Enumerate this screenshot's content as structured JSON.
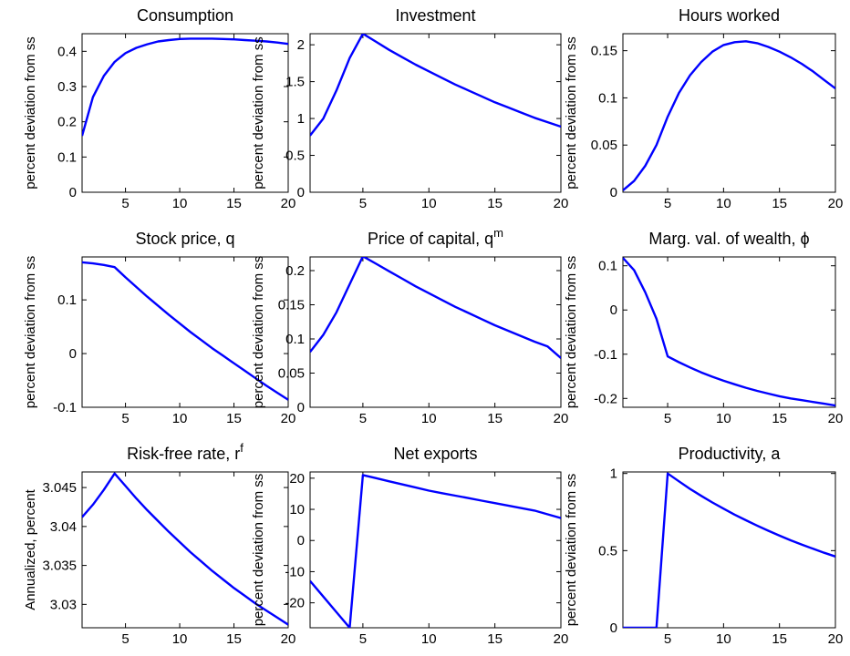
{
  "chart_data": [
    {
      "type": "line",
      "title": "Consumption",
      "ylabel": "percent deviation from ss",
      "xlim": [
        1,
        20
      ],
      "ylim": [
        0,
        0.45
      ],
      "xticks": [
        5,
        10,
        15,
        20
      ],
      "yticks": [
        0,
        0.1,
        0.2,
        0.3,
        0.4
      ],
      "grid": false,
      "series_color": "#0000ff",
      "x": [
        1,
        2,
        3,
        4,
        5,
        6,
        7,
        8,
        9,
        10,
        11,
        12,
        13,
        14,
        15,
        16,
        17,
        18,
        19,
        20
      ],
      "y": [
        0.16,
        0.27,
        0.33,
        0.37,
        0.395,
        0.41,
        0.42,
        0.428,
        0.432,
        0.435,
        0.436,
        0.436,
        0.436,
        0.435,
        0.434,
        0.432,
        0.43,
        0.428,
        0.425,
        0.421
      ]
    },
    {
      "type": "line",
      "title": "Investment",
      "ylabel": "percent deviation from ss",
      "xlim": [
        1,
        20
      ],
      "ylim": [
        0,
        2.15
      ],
      "xticks": [
        5,
        10,
        15,
        20
      ],
      "yticks": [
        0,
        0.5,
        1,
        1.5,
        2
      ],
      "grid": false,
      "series_color": "#0000ff",
      "x": [
        1,
        2,
        3,
        4,
        5,
        6,
        7,
        8,
        9,
        10,
        11,
        12,
        13,
        14,
        15,
        16,
        17,
        18,
        19,
        20
      ],
      "y": [
        0.77,
        1.0,
        1.38,
        1.82,
        2.15,
        2.04,
        1.93,
        1.83,
        1.73,
        1.64,
        1.55,
        1.46,
        1.38,
        1.3,
        1.22,
        1.15,
        1.08,
        1.01,
        0.95,
        0.89
      ]
    },
    {
      "type": "line",
      "title": "Hours worked",
      "ylabel": "percent deviation from ss",
      "xlim": [
        1,
        20
      ],
      "ylim": [
        0,
        0.168
      ],
      "xticks": [
        5,
        10,
        15,
        20
      ],
      "yticks": [
        0,
        0.05,
        0.1,
        0.15
      ],
      "grid": false,
      "series_color": "#0000ff",
      "x": [
        1,
        2,
        3,
        4,
        5,
        6,
        7,
        8,
        9,
        10,
        11,
        12,
        13,
        14,
        15,
        16,
        17,
        18,
        19,
        20
      ],
      "y": [
        0.002,
        0.012,
        0.028,
        0.05,
        0.08,
        0.105,
        0.124,
        0.138,
        0.149,
        0.156,
        0.159,
        0.16,
        0.158,
        0.154,
        0.149,
        0.143,
        0.136,
        0.128,
        0.119,
        0.11
      ]
    },
    {
      "type": "line",
      "title": "Stock price, q",
      "ylabel": "percent deviation from ss",
      "xlim": [
        1,
        20
      ],
      "ylim": [
        -0.1,
        0.18
      ],
      "xticks": [
        5,
        10,
        15,
        20
      ],
      "yticks": [
        -0.1,
        0,
        0.1
      ],
      "grid": false,
      "series_color": "#0000ff",
      "x": [
        1,
        2,
        3,
        4,
        5,
        6,
        7,
        8,
        9,
        10,
        11,
        12,
        13,
        14,
        15,
        16,
        17,
        18,
        19,
        20
      ],
      "y": [
        0.17,
        0.168,
        0.165,
        0.161,
        0.142,
        0.124,
        0.106,
        0.089,
        0.072,
        0.056,
        0.04,
        0.025,
        0.01,
        -0.004,
        -0.018,
        -0.032,
        -0.046,
        -0.06,
        -0.073,
        -0.086
      ]
    },
    {
      "type": "line",
      "title": "Price of capital, q",
      "title_sup": "m",
      "ylabel": "percent deviation from ss",
      "xlim": [
        1,
        20
      ],
      "ylim": [
        0,
        0.22
      ],
      "xticks": [
        5,
        10,
        15,
        20
      ],
      "yticks": [
        0,
        0.05,
        0.1,
        0.15,
        0.2
      ],
      "grid": false,
      "series_color": "#0000ff",
      "x": [
        1,
        2,
        3,
        4,
        5,
        6,
        7,
        8,
        9,
        10,
        11,
        12,
        13,
        14,
        15,
        16,
        17,
        18,
        19,
        20
      ],
      "y": [
        0.081,
        0.106,
        0.139,
        0.18,
        0.221,
        0.21,
        0.199,
        0.188,
        0.177,
        0.167,
        0.157,
        0.147,
        0.138,
        0.129,
        0.12,
        0.112,
        0.104,
        0.096,
        0.089,
        0.072
      ]
    },
    {
      "type": "line",
      "title": "Marg. val. of wealth, ϕ",
      "ylabel": "percent deviation from ss",
      "xlim": [
        1,
        20
      ],
      "ylim": [
        -0.22,
        0.12
      ],
      "xticks": [
        5,
        10,
        15,
        20
      ],
      "yticks": [
        -0.2,
        -0.1,
        0,
        0.1
      ],
      "grid": false,
      "series_color": "#0000ff",
      "x": [
        1,
        2,
        3,
        4,
        5,
        6,
        7,
        8,
        9,
        10,
        11,
        12,
        13,
        14,
        15,
        16,
        17,
        18,
        19,
        20
      ],
      "y": [
        0.118,
        0.09,
        0.04,
        -0.02,
        -0.105,
        -0.118,
        -0.13,
        -0.141,
        -0.151,
        -0.16,
        -0.168,
        -0.176,
        -0.183,
        -0.189,
        -0.195,
        -0.2,
        -0.204,
        -0.208,
        -0.212,
        -0.216
      ]
    },
    {
      "type": "line",
      "title": "Risk-free rate, r",
      "title_sup": "f",
      "ylabel": "Annualized, percent",
      "xlim": [
        1,
        20
      ],
      "ylim": [
        3.027,
        3.047
      ],
      "xticks": [
        5,
        10,
        15,
        20
      ],
      "yticks": [
        3.03,
        3.035,
        3.04,
        3.045
      ],
      "grid": false,
      "series_color": "#0000ff",
      "x": [
        1,
        2,
        3,
        4,
        5,
        6,
        7,
        8,
        9,
        10,
        11,
        12,
        13,
        14,
        15,
        16,
        17,
        18,
        19,
        20
      ],
      "y": [
        3.0412,
        3.0428,
        3.0447,
        3.0468,
        3.0452,
        3.0436,
        3.0421,
        3.0407,
        3.0393,
        3.038,
        3.0367,
        3.0355,
        3.0343,
        3.0332,
        3.0321,
        3.0311,
        3.0301,
        3.0292,
        3.0283,
        3.0274
      ]
    },
    {
      "type": "line",
      "title": "Net exports",
      "ylabel": "percent deviation from ss",
      "xlim": [
        1,
        20
      ],
      "ylim": [
        -28,
        22
      ],
      "xticks": [
        5,
        10,
        15,
        20
      ],
      "yticks": [
        -20,
        -10,
        0,
        10,
        20
      ],
      "grid": false,
      "series_color": "#0000ff",
      "x": [
        1,
        2,
        3,
        4,
        5,
        6,
        7,
        8,
        9,
        10,
        11,
        12,
        13,
        14,
        15,
        16,
        17,
        18,
        19,
        20
      ],
      "y": [
        -13,
        -18,
        -23,
        -28,
        21,
        20,
        19,
        18,
        17,
        16,
        15.2,
        14.4,
        13.6,
        12.8,
        12,
        11.2,
        10.4,
        9.6,
        8.4,
        7.2
      ]
    },
    {
      "type": "line",
      "title": "Productivity, a",
      "ylabel": "percent deviation from ss",
      "xlim": [
        1,
        20
      ],
      "ylim": [
        0,
        1.01
      ],
      "xticks": [
        5,
        10,
        15,
        20
      ],
      "yticks": [
        0,
        0.5,
        1
      ],
      "grid": false,
      "series_color": "#0000ff",
      "x": [
        1,
        2,
        3,
        4,
        5,
        6,
        7,
        8,
        9,
        10,
        11,
        12,
        13,
        14,
        15,
        16,
        17,
        18,
        19,
        20
      ],
      "y": [
        0,
        0,
        0,
        0,
        1,
        0.95,
        0.9,
        0.855,
        0.812,
        0.772,
        0.733,
        0.697,
        0.662,
        0.629,
        0.597,
        0.567,
        0.539,
        0.512,
        0.486,
        0.462
      ]
    }
  ]
}
